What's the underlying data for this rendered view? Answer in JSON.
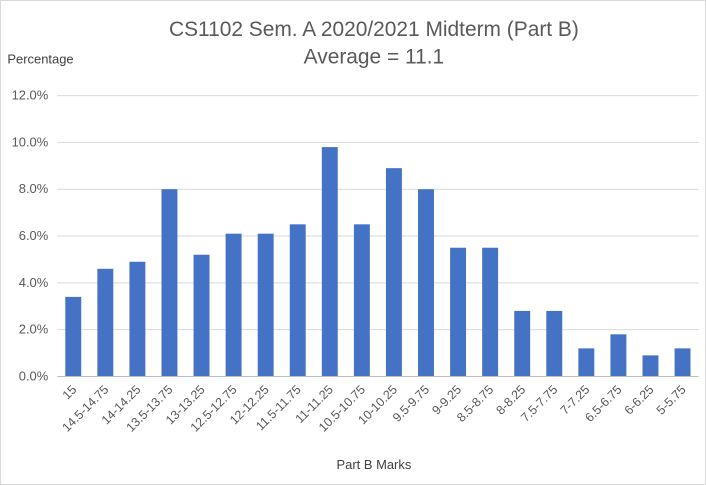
{
  "chart_data": {
    "type": "bar",
    "title": "CS1102 Sem. A 2020/2021 Midterm (Part B)",
    "subtitle": "Average = 11.1",
    "xlabel": "Part B Marks",
    "ylabel": "Percentage",
    "ylim": [
      0,
      12
    ],
    "yticks": [
      "0.0%",
      "2.0%",
      "4.0%",
      "6.0%",
      "8.0%",
      "10.0%",
      "12.0%"
    ],
    "grid": true,
    "bar_color": "#4472C4",
    "categories": [
      "15",
      "14.5-14.75",
      "14-14.25",
      "13.5-13.75",
      "13-13.25",
      "12.5-12.75",
      "12-12.25",
      "11.5-11.75",
      "11-11.25",
      "10.5-10.75",
      "10-10.25",
      "9.5-9.75",
      "9-9.25",
      "8.5-8.75",
      "8-8.25",
      "7.5-7.75",
      "7-7.25",
      "6.5-6.75",
      "6-6.25",
      "5-5.75"
    ],
    "values": [
      3.4,
      4.6,
      4.9,
      8.0,
      5.2,
      6.1,
      6.1,
      6.5,
      9.8,
      6.5,
      8.9,
      8.0,
      5.5,
      5.5,
      2.8,
      2.8,
      1.2,
      1.8,
      0.9,
      1.2
    ]
  }
}
